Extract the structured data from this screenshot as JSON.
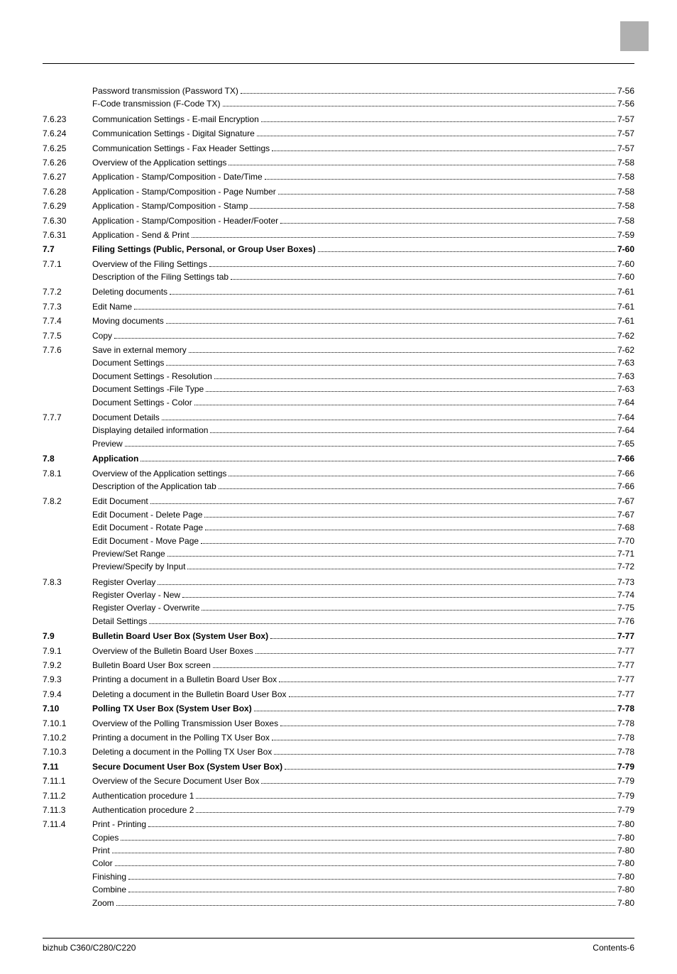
{
  "header_tab_color": "#b0b0b0",
  "footer": {
    "left": "bizhub C360/C280/C220",
    "right": "Contents-6"
  },
  "rows": [
    {
      "num": "",
      "title": "Password transmission (Password TX)",
      "page": "7-56",
      "bold": false
    },
    {
      "num": "",
      "title": "F-Code transmission (F-Code TX)",
      "page": "7-56",
      "bold": false
    },
    {
      "num": "7.6.23",
      "title": "Communication Settings - E-mail Encryption",
      "page": "7-57",
      "bold": false
    },
    {
      "num": "7.6.24",
      "title": "Communication Settings - Digital Signature",
      "page": "7-57",
      "bold": false
    },
    {
      "num": "7.6.25",
      "title": "Communication Settings - Fax Header Settings",
      "page": "7-57",
      "bold": false
    },
    {
      "num": "7.6.26",
      "title": "Overview of the Application settings",
      "page": "7-58",
      "bold": false
    },
    {
      "num": "7.6.27",
      "title": "Application - Stamp/Composition - Date/Time",
      "page": "7-58",
      "bold": false
    },
    {
      "num": "7.6.28",
      "title": "Application - Stamp/Composition - Page Number",
      "page": "7-58",
      "bold": false
    },
    {
      "num": "7.6.29",
      "title": "Application - Stamp/Composition - Stamp",
      "page": "7-58",
      "bold": false
    },
    {
      "num": "7.6.30",
      "title": "Application - Stamp/Composition - Header/Footer",
      "page": "7-58",
      "bold": false
    },
    {
      "num": "7.6.31",
      "title": "Application - Send & Print",
      "page": "7-59",
      "bold": false
    },
    {
      "num": "7.7",
      "title": "Filing Settings (Public, Personal, or Group User Boxes)",
      "page": "7-60",
      "bold": true
    },
    {
      "num": "7.7.1",
      "title": "Overview of the Filing Settings",
      "page": "7-60",
      "bold": false
    },
    {
      "num": "",
      "title": "Description of the Filing Settings tab",
      "page": "7-60",
      "bold": false
    },
    {
      "num": "7.7.2",
      "title": "Deleting documents",
      "page": "7-61",
      "bold": false
    },
    {
      "num": "7.7.3",
      "title": "Edit Name",
      "page": "7-61",
      "bold": false
    },
    {
      "num": "7.7.4",
      "title": "Moving documents",
      "page": "7-61",
      "bold": false
    },
    {
      "num": "7.7.5",
      "title": "Copy",
      "page": "7-62",
      "bold": false
    },
    {
      "num": "7.7.6",
      "title": "Save in external memory",
      "page": "7-62",
      "bold": false
    },
    {
      "num": "",
      "title": "Document Settings",
      "page": "7-63",
      "bold": false
    },
    {
      "num": "",
      "title": "Document Settings - Resolution",
      "page": "7-63",
      "bold": false
    },
    {
      "num": "",
      "title": "Document Settings -File Type",
      "page": "7-63",
      "bold": false
    },
    {
      "num": "",
      "title": "Document Settings - Color",
      "page": "7-64",
      "bold": false
    },
    {
      "num": "7.7.7",
      "title": "Document Details",
      "page": "7-64",
      "bold": false
    },
    {
      "num": "",
      "title": "Displaying detailed information",
      "page": "7-64",
      "bold": false
    },
    {
      "num": "",
      "title": "Preview",
      "page": "7-65",
      "bold": false
    },
    {
      "num": "7.8",
      "title": "Application",
      "page": "7-66",
      "bold": true
    },
    {
      "num": "7.8.1",
      "title": "Overview of the Application settings",
      "page": "7-66",
      "bold": false
    },
    {
      "num": "",
      "title": "Description of the Application tab",
      "page": "7-66",
      "bold": false
    },
    {
      "num": "7.8.2",
      "title": "Edit Document",
      "page": "7-67",
      "bold": false
    },
    {
      "num": "",
      "title": "Edit Document - Delete Page",
      "page": "7-67",
      "bold": false
    },
    {
      "num": "",
      "title": "Edit Document - Rotate Page",
      "page": "7-68",
      "bold": false
    },
    {
      "num": "",
      "title": "Edit Document - Move Page",
      "page": "7-70",
      "bold": false
    },
    {
      "num": "",
      "title": "Preview/Set Range",
      "page": "7-71",
      "bold": false
    },
    {
      "num": "",
      "title": "Preview/Specify by Input",
      "page": "7-72",
      "bold": false
    },
    {
      "num": "7.8.3",
      "title": "Register Overlay",
      "page": "7-73",
      "bold": false
    },
    {
      "num": "",
      "title": "Register Overlay - New",
      "page": "7-74",
      "bold": false
    },
    {
      "num": "",
      "title": "Register Overlay - Overwrite",
      "page": "7-75",
      "bold": false
    },
    {
      "num": "",
      "title": "Detail Settings",
      "page": "7-76",
      "bold": false
    },
    {
      "num": "7.9",
      "title": "Bulletin Board User Box (System User Box)",
      "page": "7-77",
      "bold": true
    },
    {
      "num": "7.9.1",
      "title": "Overview of the Bulletin Board User Boxes",
      "page": "7-77",
      "bold": false
    },
    {
      "num": "7.9.2",
      "title": "Bulletin Board User Box screen",
      "page": "7-77",
      "bold": false
    },
    {
      "num": "7.9.3",
      "title": "Printing a document in a Bulletin Board User Box",
      "page": "7-77",
      "bold": false
    },
    {
      "num": "7.9.4",
      "title": "Deleting a document in the Bulletin Board User Box",
      "page": "7-77",
      "bold": false
    },
    {
      "num": "7.10",
      "title": "Polling TX User Box (System User Box)",
      "page": "7-78",
      "bold": true
    },
    {
      "num": "7.10.1",
      "title": "Overview of the Polling Transmission User Boxes",
      "page": "7-78",
      "bold": false
    },
    {
      "num": "7.10.2",
      "title": "Printing a document in the Polling TX User Box",
      "page": "7-78",
      "bold": false
    },
    {
      "num": "7.10.3",
      "title": "Deleting a document in the Polling TX User Box",
      "page": "7-78",
      "bold": false
    },
    {
      "num": "7.11",
      "title": "Secure Document User Box (System User Box)",
      "page": "7-79",
      "bold": true
    },
    {
      "num": "7.11.1",
      "title": "Overview of the Secure Document User Box",
      "page": "7-79",
      "bold": false
    },
    {
      "num": "7.11.2",
      "title": "Authentication procedure 1",
      "page": "7-79",
      "bold": false
    },
    {
      "num": "7.11.3",
      "title": "Authentication procedure 2",
      "page": "7-79",
      "bold": false
    },
    {
      "num": "7.11.4",
      "title": "Print - Printing",
      "page": "7-80",
      "bold": false
    },
    {
      "num": "",
      "title": "Copies",
      "page": "7-80",
      "bold": false
    },
    {
      "num": "",
      "title": "Print",
      "page": "7-80",
      "bold": false
    },
    {
      "num": "",
      "title": "Color",
      "page": "7-80",
      "bold": false
    },
    {
      "num": "",
      "title": "Finishing",
      "page": "7-80",
      "bold": false
    },
    {
      "num": "",
      "title": "Combine",
      "page": "7-80",
      "bold": false
    },
    {
      "num": "",
      "title": "Zoom",
      "page": "7-80",
      "bold": false
    }
  ]
}
